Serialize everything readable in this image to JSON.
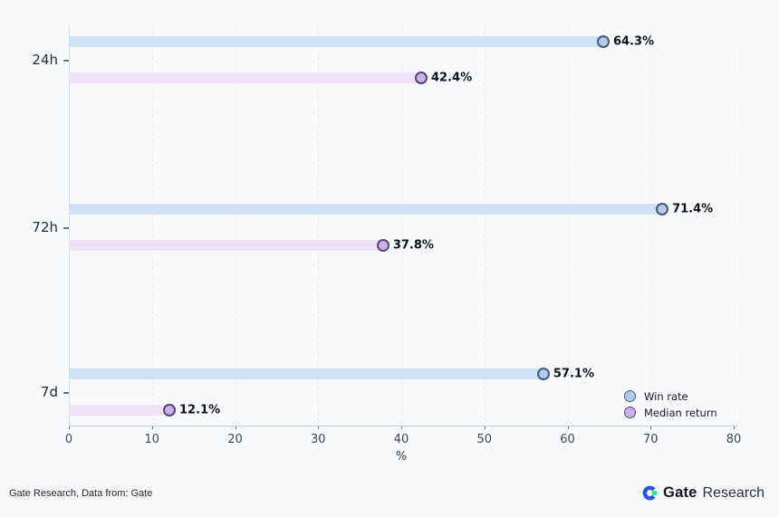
{
  "chart_data": {
    "type": "bar",
    "orientation": "horizontal",
    "title": "",
    "xlabel": "%",
    "xlim": [
      0,
      80
    ],
    "xticks": [
      0,
      10,
      20,
      30,
      40,
      50,
      60,
      70,
      80
    ],
    "grid": true,
    "legend_position": "lower right",
    "categories": [
      "24h",
      "72h",
      "7d"
    ],
    "series": [
      {
        "name": "Win rate",
        "values": [
          64.3,
          71.4,
          57.1
        ],
        "labels": [
          "64.3%",
          "71.4%",
          "57.1%"
        ],
        "bar_color": "#cfe2f7",
        "marker_fill": "#aecbf1",
        "marker_border": "#4c5a75"
      },
      {
        "name": "Median return",
        "values": [
          42.4,
          37.8,
          12.1
        ],
        "labels": [
          "42.4%",
          "37.8%",
          "12.1%"
        ],
        "bar_color": "#efe1f8",
        "marker_fill": "#ccafec",
        "marker_border": "#564a70"
      }
    ]
  },
  "legend": {
    "items": [
      "Win rate",
      "Median return"
    ]
  },
  "footer": {
    "source": "Gate Research, Data from: Gate",
    "brand_primary": "Gate",
    "brand_secondary": "Research"
  },
  "colors": {
    "background": "#f8f9fb",
    "logo_blue": "#2354e6",
    "logo_green": "#17e6a1"
  }
}
